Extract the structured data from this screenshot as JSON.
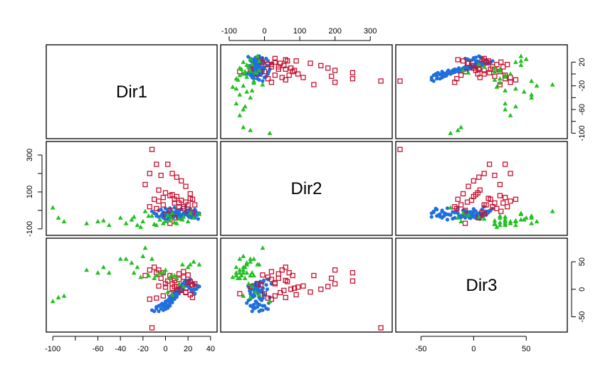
{
  "chart_data": {
    "type": "scatter",
    "subtype": "pairs-scatterplot-matrix",
    "variables": [
      "Dir1",
      "Dir2",
      "Dir3"
    ],
    "ranges": {
      "Dir1": [
        -102,
        42
      ],
      "Dir2": [
        -112,
        350
      ],
      "Dir3": [
        -70,
        85
      ]
    },
    "ticks": {
      "Dir1": [
        -100,
        -80,
        -60,
        -40,
        -20,
        0,
        20,
        40
      ],
      "Dir2": [
        -100,
        0,
        100,
        200,
        300
      ],
      "Dir3": [
        -50,
        0,
        50
      ]
    },
    "tick_labels": {
      "Dir1": [
        "-100",
        "",
        "-60",
        "-40",
        "-20",
        "0",
        "20",
        "40"
      ],
      "Dir2": [
        "-100",
        "0",
        "100",
        "200",
        "300"
      ],
      "Dir3": [
        "-50",
        "0",
        "50"
      ]
    },
    "left_tick_labels": {
      "Dir1": [
        "-100",
        "-60",
        "-20",
        "20"
      ],
      "Dir2": [
        "-100",
        "100",
        "300"
      ],
      "Dir3": [
        "-50",
        "0",
        "50"
      ]
    },
    "left_ticks": {
      "Dir1": [
        -100,
        -80,
        -60,
        -40,
        -20,
        0,
        20
      ],
      "Dir2": [
        -100,
        0,
        100,
        200,
        300
      ],
      "Dir3": [
        -50,
        0,
        50
      ]
    },
    "grid": false,
    "legend": "none",
    "series": [
      {
        "color": "#1f6fdc",
        "marker": "filled-circle",
        "points": [
          [
            -8,
            -20,
            -32
          ],
          [
            -6,
            -35,
            -40
          ],
          [
            -4,
            -30,
            -28
          ],
          [
            -2,
            -40,
            -30
          ],
          [
            0,
            -25,
            -22
          ],
          [
            2,
            -45,
            -20
          ],
          [
            4,
            -15,
            -15
          ],
          [
            6,
            -30,
            -10
          ],
          [
            8,
            -20,
            -5
          ],
          [
            10,
            -10,
            -2
          ],
          [
            12,
            -35,
            0
          ],
          [
            14,
            -25,
            5
          ],
          [
            16,
            -15,
            10
          ],
          [
            18,
            -5,
            12
          ],
          [
            20,
            -30,
            8
          ],
          [
            22,
            -20,
            3
          ],
          [
            24,
            -10,
            -5
          ],
          [
            26,
            -40,
            -8
          ],
          [
            28,
            -25,
            2
          ],
          [
            30,
            -15,
            5
          ],
          [
            -6,
            0,
            -30
          ],
          [
            -4,
            5,
            -35
          ],
          [
            -2,
            -10,
            -38
          ],
          [
            0,
            10,
            -36
          ],
          [
            2,
            -5,
            -30
          ],
          [
            4,
            12,
            -25
          ],
          [
            6,
            -8,
            -20
          ],
          [
            8,
            15,
            -15
          ],
          [
            10,
            0,
            -10
          ],
          [
            12,
            -12,
            -5
          ],
          [
            14,
            8,
            0
          ],
          [
            16,
            -18,
            5
          ],
          [
            18,
            20,
            10
          ],
          [
            20,
            -2,
            15
          ],
          [
            22,
            10,
            18
          ],
          [
            24,
            -22,
            12
          ],
          [
            26,
            5,
            8
          ],
          [
            -10,
            -15,
            -40
          ],
          [
            -8,
            -30,
            -35
          ],
          [
            -12,
            -5,
            -38
          ],
          [
            0,
            -50,
            -25
          ],
          [
            3,
            -40,
            -18
          ],
          [
            5,
            -28,
            -12
          ],
          [
            7,
            -18,
            -8
          ],
          [
            9,
            -8,
            -3
          ],
          [
            11,
            -42,
            2
          ],
          [
            13,
            -32,
            6
          ],
          [
            15,
            -22,
            10
          ],
          [
            17,
            -12,
            14
          ],
          [
            19,
            -2,
            16
          ],
          [
            21,
            -36,
            4
          ],
          [
            23,
            -26,
            -2
          ],
          [
            25,
            -16,
            -6
          ],
          [
            27,
            -6,
            0
          ],
          [
            29,
            -46,
            6
          ],
          [
            -3,
            -20,
            -26
          ],
          [
            -1,
            -34,
            -32
          ],
          [
            1,
            -14,
            -28
          ],
          [
            3,
            -24,
            -22
          ],
          [
            5,
            -4,
            -16
          ],
          [
            7,
            -38,
            -12
          ],
          [
            9,
            -28,
            -6
          ],
          [
            11,
            -18,
            -1
          ],
          [
            13,
            -44,
            4
          ],
          [
            15,
            -34,
            8
          ],
          [
            17,
            -24,
            12
          ],
          [
            19,
            -14,
            6
          ],
          [
            21,
            -4,
            2
          ],
          [
            23,
            -40,
            -4
          ],
          [
            25,
            -30,
            0
          ],
          [
            6,
            -22,
            -24
          ],
          [
            8,
            -12,
            -18
          ],
          [
            10,
            -32,
            -14
          ],
          [
            12,
            -2,
            -8
          ],
          [
            14,
            -42,
            -3
          ],
          [
            16,
            -28,
            3
          ],
          [
            18,
            -18,
            9
          ],
          [
            20,
            -8,
            13
          ],
          [
            4,
            -36,
            -30
          ],
          [
            2,
            -26,
            -34
          ]
        ]
      },
      {
        "color": "#c8102e",
        "marker": "open-square",
        "points": [
          [
            -12,
            330,
            -70
          ],
          [
            -18,
            140,
            25
          ],
          [
            -14,
            200,
            35
          ],
          [
            -8,
            250,
            30
          ],
          [
            -4,
            190,
            20
          ],
          [
            2,
            250,
            15
          ],
          [
            6,
            200,
            10
          ],
          [
            10,
            180,
            5
          ],
          [
            14,
            160,
            0
          ],
          [
            18,
            130,
            -5
          ],
          [
            22,
            90,
            -10
          ],
          [
            24,
            60,
            -15
          ],
          [
            26,
            30,
            10
          ],
          [
            -10,
            60,
            40
          ],
          [
            -6,
            50,
            35
          ],
          [
            -2,
            70,
            30
          ],
          [
            4,
            80,
            25
          ],
          [
            8,
            40,
            20
          ],
          [
            12,
            20,
            18
          ],
          [
            16,
            10,
            22
          ],
          [
            20,
            30,
            12
          ],
          [
            24,
            -10,
            8
          ],
          [
            -6,
            110,
            6
          ],
          [
            0,
            95,
            4
          ],
          [
            6,
            85,
            2
          ],
          [
            10,
            75,
            0
          ],
          [
            14,
            55,
            -2
          ],
          [
            18,
            45,
            -6
          ],
          [
            22,
            65,
            14
          ],
          [
            -14,
            20,
            -18
          ],
          [
            -8,
            10,
            -16
          ],
          [
            -2,
            30,
            -12
          ],
          [
            4,
            0,
            -8
          ],
          [
            8,
            60,
            16
          ],
          [
            12,
            40,
            28
          ],
          [
            16,
            20,
            32
          ],
          [
            20,
            -5,
            26
          ],
          [
            4,
            -70,
            -8
          ],
          [
            0,
            -20,
            10
          ],
          [
            8,
            -40,
            5
          ]
        ]
      },
      {
        "color": "#22c022",
        "marker": "filled-triangle",
        "points": [
          [
            -100,
            15,
            -22
          ],
          [
            -95,
            -40,
            -15
          ],
          [
            -90,
            -60,
            -12
          ],
          [
            -70,
            -70,
            35
          ],
          [
            -60,
            -60,
            30
          ],
          [
            -55,
            -55,
            40
          ],
          [
            -50,
            -80,
            30
          ],
          [
            -40,
            -40,
            55
          ],
          [
            -35,
            -70,
            55
          ],
          [
            -30,
            -50,
            48
          ],
          [
            -25,
            -80,
            40
          ],
          [
            -20,
            -60,
            60
          ],
          [
            -15,
            -30,
            25
          ],
          [
            -10,
            -75,
            20
          ],
          [
            -5,
            -50,
            30
          ],
          [
            0,
            -60,
            35
          ],
          [
            5,
            -40,
            25
          ],
          [
            10,
            -70,
            20
          ],
          [
            15,
            -50,
            45
          ],
          [
            20,
            -60,
            40
          ],
          [
            25,
            -40,
            50
          ],
          [
            30,
            -20,
            45
          ],
          [
            -18,
            -5,
            75
          ],
          [
            -12,
            -30,
            55
          ],
          [
            -8,
            -80,
            25
          ],
          [
            -2,
            -70,
            30
          ],
          [
            4,
            -55,
            20
          ],
          [
            8,
            -65,
            25
          ],
          [
            12,
            -45,
            10
          ],
          [
            16,
            -35,
            5
          ],
          [
            22,
            -15,
            45
          ],
          [
            -22,
            -90,
            22
          ],
          [
            -28,
            -35,
            30
          ],
          [
            2,
            -25,
            -5
          ],
          [
            6,
            -15,
            -10
          ]
        ]
      }
    ]
  }
}
